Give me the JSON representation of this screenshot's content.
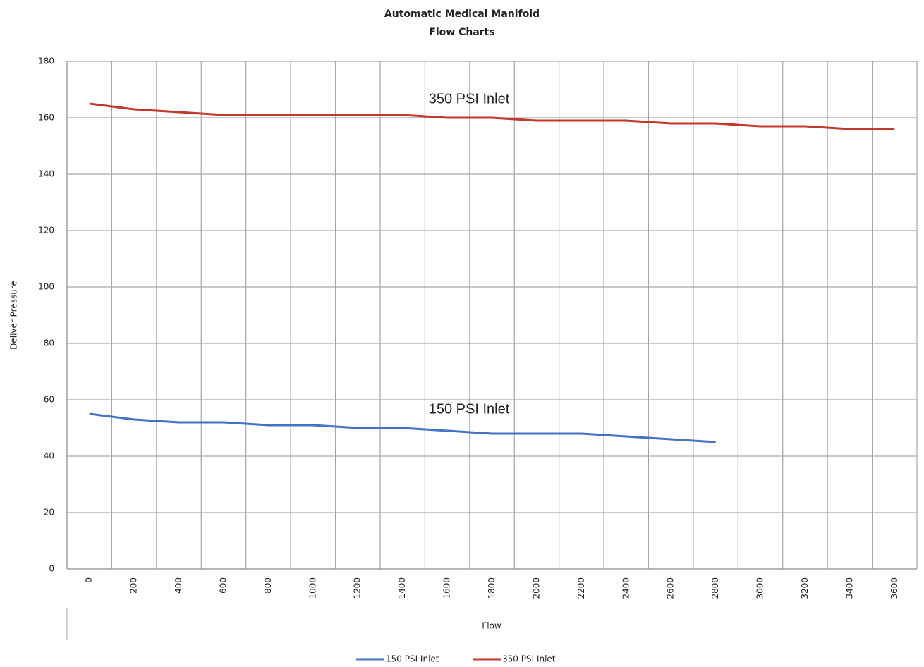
{
  "chart_data": {
    "type": "line",
    "title": "Automatic Medical Manifold",
    "subtitle": "Flow Charts",
    "x_label": "Flow",
    "y_label": "Deliver Pressure",
    "categories": [
      "0",
      "200",
      "400",
      "600",
      "800",
      "1000",
      "1200",
      "1400",
      "1600",
      "1800",
      "2000",
      "2200",
      "2400",
      "2600",
      "2800",
      "3000",
      "3200",
      "3400",
      "3600"
    ],
    "series": [
      {
        "name": "150 PSI Inlet",
        "color": "#4472c4",
        "values": [
          55,
          53,
          52,
          52,
          51,
          51,
          50,
          50,
          49,
          48,
          48,
          48,
          47,
          46,
          45,
          null,
          null,
          null,
          null
        ]
      },
      {
        "name": "350 PSI Inlet",
        "color": "#c0392b",
        "values": [
          165,
          163,
          162,
          161,
          161,
          161,
          161,
          161,
          160,
          160,
          159,
          159,
          159,
          158,
          158,
          157,
          157,
          156,
          156
        ]
      }
    ],
    "annotations": [
      "350 PSI Inlet",
      "150 PSI Inlet"
    ],
    "ylim": [
      0,
      180
    ],
    "yticks": [
      0,
      20,
      40,
      60,
      80,
      100,
      120,
      140,
      160,
      180
    ],
    "grid": true,
    "legend": "bottom"
  }
}
